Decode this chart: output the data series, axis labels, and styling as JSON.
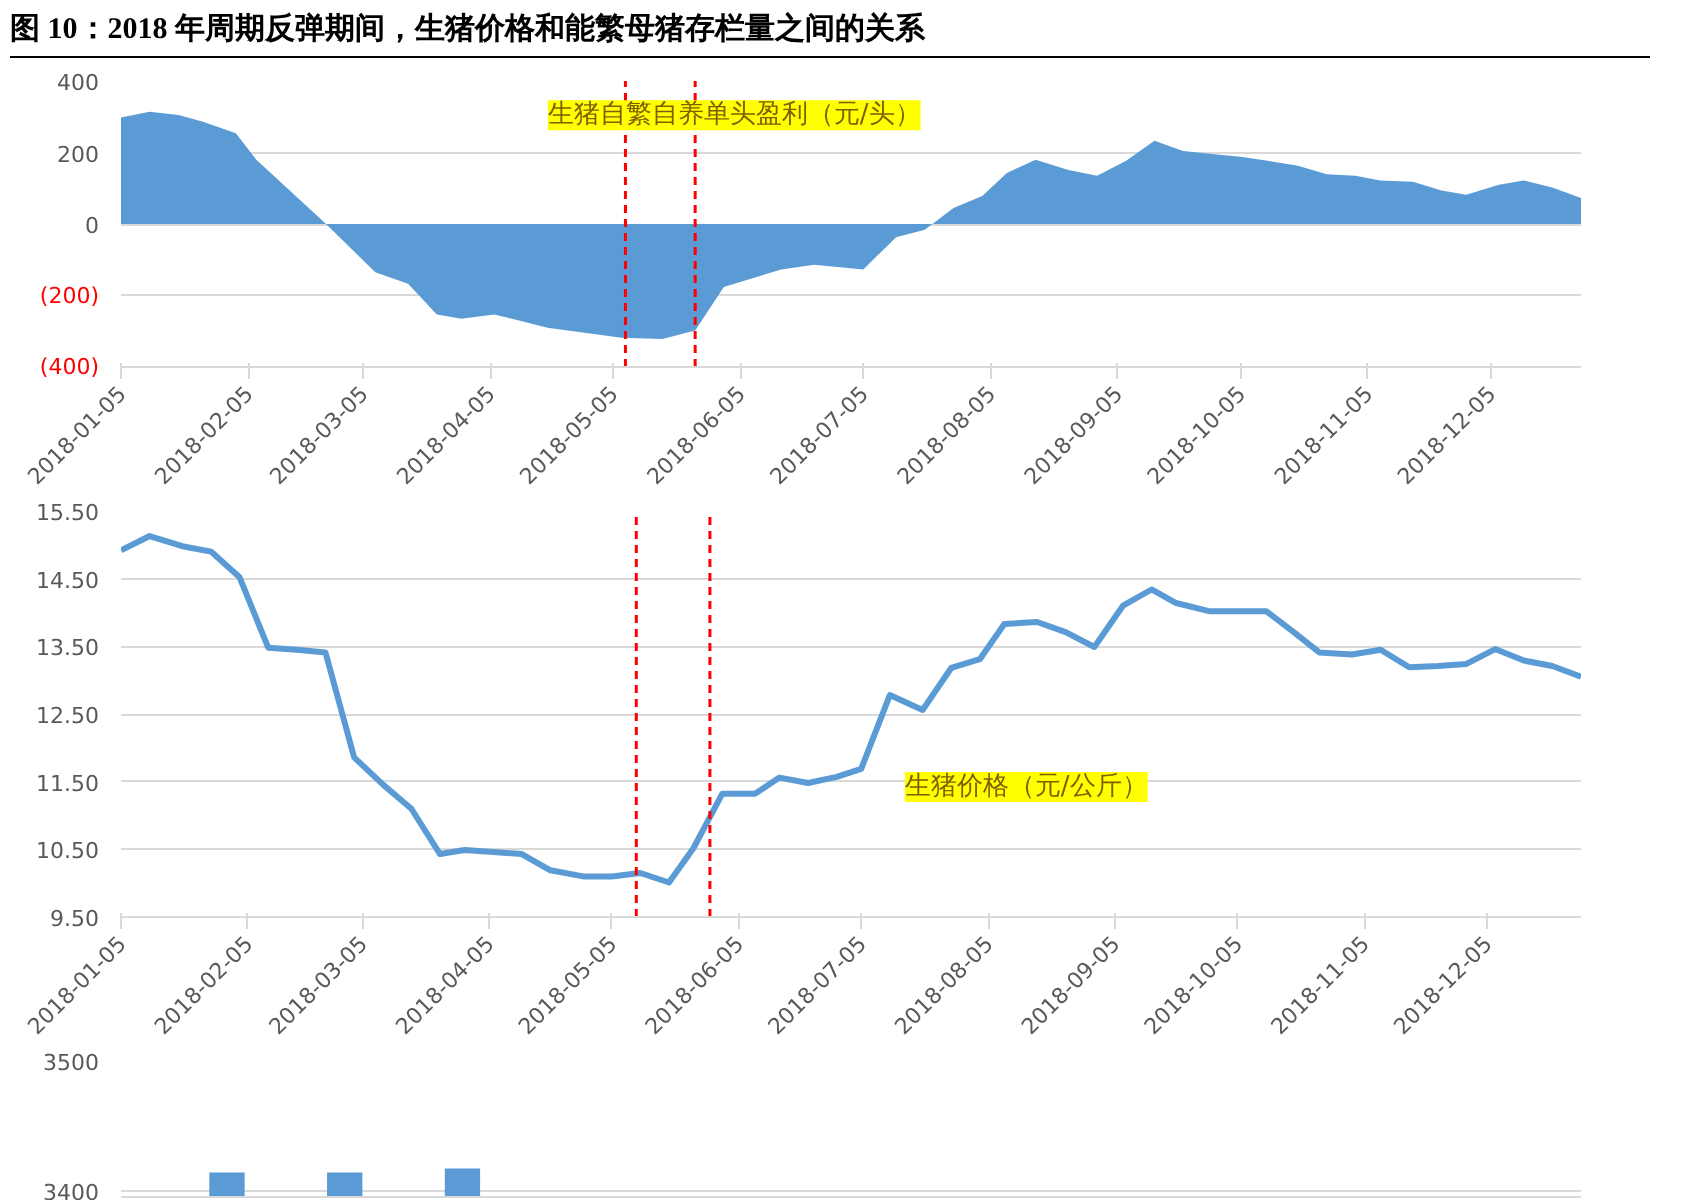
{
  "chart_data": [
    {
      "type": "area",
      "title": "图 10：2018 年周期反弹期间，生猪价格和能繁母猪存栏量之间的关系",
      "x": [
        "2018-01-05",
        "2018-01-12",
        "2018-01-19",
        "2018-01-25",
        "2018-02-02",
        "2018-02-07",
        "2018-02-24",
        "2018-03-08",
        "2018-03-16",
        "2018-03-23",
        "2018-03-29",
        "2018-04-06",
        "2018-04-19",
        "2018-05-07",
        "2018-05-17",
        "2018-05-25",
        "2018-06-01",
        "2018-06-07",
        "2018-06-15",
        "2018-06-23",
        "2018-07-05",
        "2018-07-13",
        "2018-07-20",
        "2018-07-27",
        "2018-08-03",
        "2018-08-09",
        "2018-08-16",
        "2018-08-24",
        "2018-08-31",
        "2018-09-07",
        "2018-09-14",
        "2018-09-21",
        "2018-09-28",
        "2018-10-05",
        "2018-10-12",
        "2018-10-19",
        "2018-10-26",
        "2018-11-02",
        "2018-11-08",
        "2018-11-16",
        "2018-11-23",
        "2018-11-29",
        "2018-12-07",
        "2018-12-13",
        "2018-12-20",
        "2018-12-27"
      ],
      "series": [
        {
          "name": "生猪自繁自养单头盈利（元/头）",
          "color": "#5b9bd5",
          "values": [
            298,
            314,
            305,
            286,
            254,
            180,
            0,
            -135,
            -167,
            -253,
            -265,
            -253,
            -290,
            -318,
            -322,
            -298,
            -176,
            -155,
            -127,
            -114,
            -127,
            -37,
            -16,
            45,
            78,
            143,
            180,
            151,
            135,
            176,
            233,
            204,
            196,
            188,
            176,
            163,
            139,
            135,
            122,
            118,
            94,
            82,
            110,
            122,
            102,
            73
          ]
        }
      ],
      "xlim": [
        "2018-01-05",
        "2018-12-27"
      ],
      "xticks": [
        "2018-01-05",
        "2018-02-05",
        "2018-03-05",
        "2018-04-05",
        "2018-05-05",
        "2018-06-05",
        "2018-07-05",
        "2018-08-05",
        "2018-09-05",
        "2018-10-05",
        "2018-11-05",
        "2018-12-05"
      ],
      "ylim": [
        -400,
        400
      ],
      "yticks": [
        {
          "value": -400,
          "label": "(400)"
        },
        {
          "value": -200,
          "label": "(200)"
        },
        0,
        200,
        400
      ],
      "grid": "y",
      "ref_lines": [
        {
          "axis": "x",
          "value": "2018-05-08",
          "color": "#ff0000",
          "line_style": "dashed"
        },
        {
          "axis": "x",
          "value": "2018-05-25",
          "color": "#ff0000",
          "line_style": "dashed"
        }
      ]
    },
    {
      "type": "line",
      "x": [
        "2018-01-05",
        "2018-01-12",
        "2018-01-20",
        "2018-01-27",
        "2018-02-03",
        "2018-02-10",
        "2018-02-17",
        "2018-02-24",
        "2018-03-03",
        "2018-03-10",
        "2018-03-17",
        "2018-03-24",
        "2018-03-30",
        "2018-04-06",
        "2018-04-13",
        "2018-04-20",
        "2018-04-28",
        "2018-05-05",
        "2018-05-12",
        "2018-05-19",
        "2018-05-25",
        "2018-06-01",
        "2018-06-09",
        "2018-06-15",
        "2018-06-22",
        "2018-06-29",
        "2018-07-05",
        "2018-07-12",
        "2018-07-20",
        "2018-07-27",
        "2018-08-03",
        "2018-08-09",
        "2018-08-17",
        "2018-08-24",
        "2018-08-31",
        "2018-09-07",
        "2018-09-14",
        "2018-09-20",
        "2018-09-28",
        "2018-10-05",
        "2018-10-12",
        "2018-10-19",
        "2018-10-25",
        "2018-11-02",
        "2018-11-09",
        "2018-11-16",
        "2018-11-23",
        "2018-11-30",
        "2018-12-07",
        "2018-12-14",
        "2018-12-21",
        "2018-12-28"
      ],
      "series": [
        {
          "name": "生猪价格（元/公斤）",
          "color": "#5b9bd5",
          "values": [
            14.92,
            15.13,
            14.98,
            14.9,
            14.52,
            13.48,
            13.45,
            13.41,
            11.86,
            11.46,
            11.1,
            10.43,
            10.49,
            10.46,
            10.43,
            10.19,
            10.1,
            10.1,
            10.15,
            10.01,
            10.52,
            11.32,
            11.32,
            11.56,
            11.48,
            11.57,
            11.69,
            12.78,
            12.56,
            13.18,
            13.31,
            13.83,
            13.86,
            13.71,
            13.49,
            14.1,
            14.34,
            14.14,
            14.02,
            14.02,
            14.02,
            13.7,
            13.41,
            13.38,
            13.45,
            13.19,
            13.21,
            13.24,
            13.46,
            13.29,
            13.21,
            13.05
          ]
        }
      ],
      "xlim": [
        "2018-01-05",
        "2018-12-28"
      ],
      "xticks": [
        "2018-01-05",
        "2018-02-05",
        "2018-03-05",
        "2018-04-05",
        "2018-05-05",
        "2018-06-05",
        "2018-07-05",
        "2018-08-05",
        "2018-09-05",
        "2018-10-05",
        "2018-11-05",
        "2018-12-05"
      ],
      "ylim": [
        9.5,
        15.5
      ],
      "yticks": [
        {
          "value": 9.5,
          "label": "9.50"
        },
        {
          "value": 10.5,
          "label": "10.50"
        },
        {
          "value": 11.5,
          "label": "11.50"
        },
        {
          "value": 12.5,
          "label": "12.50"
        },
        {
          "value": 13.5,
          "label": "13.50"
        },
        {
          "value": 14.5,
          "label": "14.50"
        },
        {
          "value": 15.5,
          "label": "15.50"
        }
      ],
      "grid": "y",
      "marker": "none",
      "line_style": "solid",
      "ref_lines": [
        {
          "axis": "x",
          "value": "2018-05-11",
          "color": "#ff0000",
          "line_style": "dashed"
        },
        {
          "axis": "x",
          "value": "2018-05-29",
          "color": "#ff0000",
          "line_style": "dashed"
        }
      ]
    },
    {
      "type": "bar",
      "categories": [
        null,
        null,
        null,
        null,
        null,
        null,
        null,
        null,
        null,
        null,
        null,
        null
      ],
      "series": [
        {
          "color": "#5b9bd5",
          "values": [
            3414,
            3414,
            3417,
            null,
            null,
            null,
            null,
            null,
            null,
            null,
            null,
            null
          ]
        }
      ],
      "ylim": [
        3395,
        3500
      ],
      "yticks": [
        3400,
        3500
      ],
      "tick_labels": "y",
      "grid": "y"
    }
  ]
}
